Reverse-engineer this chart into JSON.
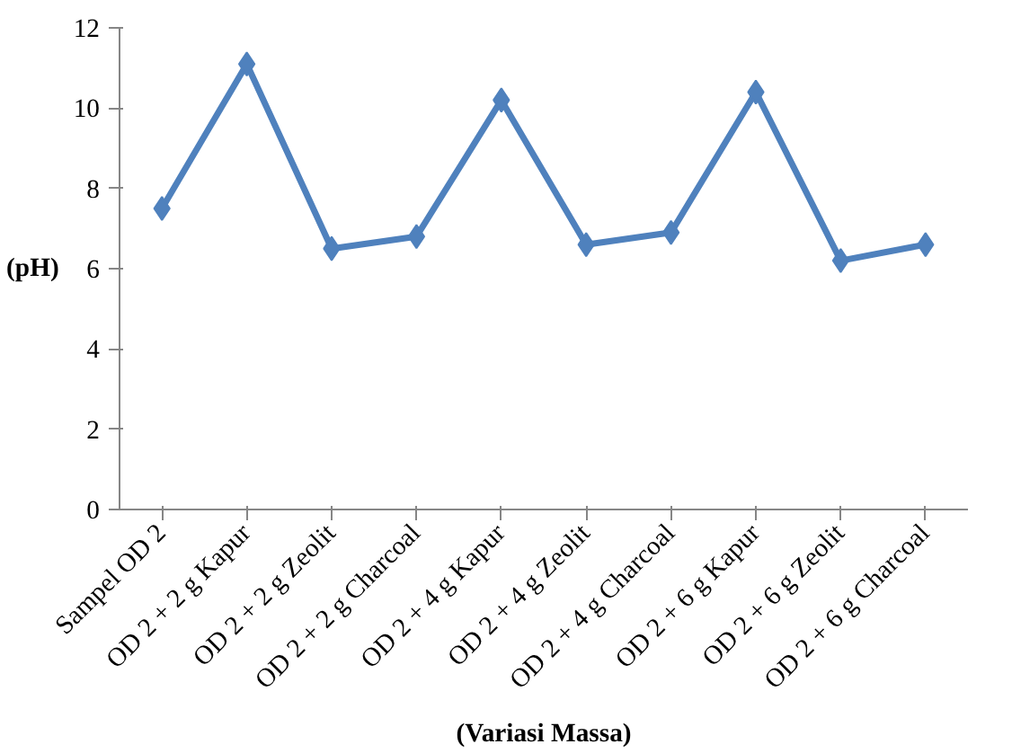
{
  "chart_data": {
    "type": "line",
    "xlabel": "(Variasi Massa)",
    "ylabel": "(pH)",
    "categories": [
      "Sampel OD 2",
      "OD 2 + 2 g Kapur",
      "OD 2 + 2 g Zeolit",
      "OD 2 + 2 g Charcoal",
      "OD 2 + 4 g Kapur",
      "OD 2 + 4 g Zeolit",
      "OD 2 + 4 g Charcoal",
      "OD 2 + 6 g Kapur",
      "OD 2 + 6 g Zeolit",
      "OD 2 + 6 g Charcoal"
    ],
    "series": [
      {
        "color": "#4f81bd",
        "values": [
          7.5,
          11.1,
          6.5,
          6.8,
          10.2,
          6.6,
          6.9,
          10.4,
          6.2,
          6.6
        ]
      }
    ],
    "ylim": [
      0,
      12
    ],
    "yticks": [
      0,
      2,
      4,
      6,
      8,
      10,
      12
    ],
    "marker": "diamond",
    "line_style": "solid"
  }
}
